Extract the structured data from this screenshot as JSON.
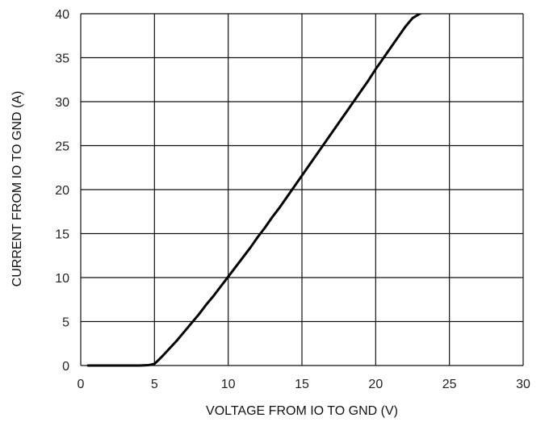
{
  "chart_data": {
    "type": "line",
    "title": "",
    "xlabel": "VOLTAGE FROM IO TO GND (V)",
    "ylabel": "CURRENT FROM IO TO GND (A)",
    "xlim": [
      0,
      30
    ],
    "ylim": [
      0,
      40
    ],
    "xticks": [
      0,
      5,
      10,
      15,
      20,
      25,
      30
    ],
    "yticks": [
      0,
      5,
      10,
      15,
      20,
      25,
      30,
      35,
      40
    ],
    "grid": true,
    "legend": "none",
    "series": [
      {
        "color": "#000000",
        "x": [
          0.5,
          1,
          2,
          3,
          4,
          4.6,
          4.8,
          5.0,
          5.2,
          5.5,
          6,
          6.5,
          7,
          7.5,
          8,
          8.5,
          9,
          9.5,
          10,
          10.5,
          11,
          11.5,
          12,
          12.5,
          13,
          13.5,
          14,
          14.5,
          15,
          15.5,
          16,
          16.5,
          17,
          17.5,
          18,
          18.5,
          19,
          19.5,
          20,
          20.5,
          21,
          21.5,
          22,
          22.5,
          23,
          23.4
        ],
        "y": [
          0,
          0,
          0,
          0,
          0,
          0.05,
          0.1,
          0.2,
          0.5,
          1.0,
          1.9,
          2.8,
          3.8,
          4.8,
          5.8,
          6.9,
          7.9,
          9.0,
          10.1,
          11.2,
          12.3,
          13.4,
          14.6,
          15.7,
          16.9,
          18.0,
          19.2,
          20.4,
          21.6,
          22.8,
          24.0,
          25.2,
          26.4,
          27.6,
          28.8,
          30.0,
          31.2,
          32.4,
          33.7,
          34.9,
          36.1,
          37.3,
          38.5,
          39.5,
          40.0,
          40.5
        ]
      }
    ]
  }
}
